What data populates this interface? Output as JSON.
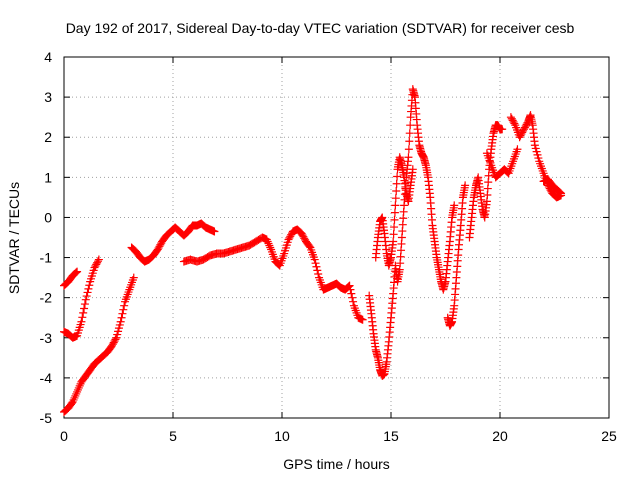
{
  "chart_data": {
    "type": "scatter",
    "title": "Day 192 of 2017, Sidereal Day-to-day VTEC variation (SDTVAR) for receiver cesb",
    "xlabel": "GPS time / hours",
    "ylabel": "SDTVAR / TECUs",
    "xlim": [
      0,
      25
    ],
    "ylim": [
      -5,
      4
    ],
    "xticks": [
      "0",
      "5",
      "10",
      "15",
      "20",
      "25"
    ],
    "yticks": [
      "-5",
      "-4",
      "-3",
      "-2",
      "-1",
      "0",
      "1",
      "2",
      "3",
      "4"
    ],
    "grid": true,
    "legend": "none",
    "marker": "+",
    "color": "#ff0000",
    "series": [
      {
        "segments": [
          [
            [
              0.0,
              -1.7
            ],
            [
              0.2,
              -1.6
            ],
            [
              0.4,
              -1.45
            ],
            [
              0.6,
              -1.35
            ]
          ],
          [
            [
              0.0,
              -2.85
            ],
            [
              0.2,
              -2.9
            ],
            [
              0.4,
              -3.0
            ],
            [
              0.6,
              -2.95
            ],
            [
              0.8,
              -2.6
            ],
            [
              1.0,
              -2.05
            ],
            [
              1.2,
              -1.6
            ],
            [
              1.4,
              -1.25
            ],
            [
              1.6,
              -1.05
            ]
          ],
          [
            [
              0.0,
              -4.85
            ],
            [
              0.2,
              -4.75
            ],
            [
              0.4,
              -4.6
            ],
            [
              0.6,
              -4.35
            ],
            [
              0.8,
              -4.1
            ],
            [
              1.0,
              -3.95
            ],
            [
              1.2,
              -3.8
            ],
            [
              1.4,
              -3.65
            ],
            [
              1.6,
              -3.55
            ],
            [
              1.8,
              -3.45
            ],
            [
              2.0,
              -3.35
            ],
            [
              2.2,
              -3.2
            ],
            [
              2.4,
              -3.0
            ],
            [
              2.6,
              -2.6
            ],
            [
              2.8,
              -2.1
            ],
            [
              3.0,
              -1.8
            ],
            [
              3.2,
              -1.5
            ]
          ],
          [
            [
              3.1,
              -0.75
            ],
            [
              3.3,
              -0.85
            ],
            [
              3.5,
              -1.0
            ],
            [
              3.7,
              -1.1
            ],
            [
              3.9,
              -1.05
            ],
            [
              4.1,
              -0.95
            ],
            [
              4.3,
              -0.8
            ],
            [
              4.5,
              -0.6
            ],
            [
              4.7,
              -0.45
            ],
            [
              4.9,
              -0.35
            ],
            [
              5.1,
              -0.25
            ],
            [
              5.3,
              -0.35
            ],
            [
              5.5,
              -0.45
            ],
            [
              5.7,
              -0.35
            ],
            [
              5.9,
              -0.2
            ],
            [
              6.1,
              -0.2
            ],
            [
              6.3,
              -0.15
            ],
            [
              6.5,
              -0.25
            ],
            [
              6.7,
              -0.3
            ],
            [
              6.9,
              -0.35
            ]
          ],
          [
            [
              5.5,
              -1.1
            ],
            [
              5.8,
              -1.05
            ],
            [
              6.1,
              -1.1
            ],
            [
              6.4,
              -1.05
            ],
            [
              6.7,
              -0.95
            ],
            [
              7.0,
              -0.9
            ],
            [
              7.3,
              -0.9
            ],
            [
              7.6,
              -0.85
            ],
            [
              7.9,
              -0.8
            ],
            [
              8.2,
              -0.75
            ],
            [
              8.5,
              -0.7
            ],
            [
              8.8,
              -0.6
            ],
            [
              9.1,
              -0.5
            ],
            [
              9.3,
              -0.55
            ],
            [
              9.5,
              -0.8
            ],
            [
              9.7,
              -1.1
            ],
            [
              9.9,
              -1.2
            ],
            [
              10.1,
              -0.9
            ],
            [
              10.3,
              -0.55
            ],
            [
              10.5,
              -0.35
            ],
            [
              10.7,
              -0.3
            ],
            [
              10.9,
              -0.4
            ],
            [
              11.1,
              -0.6
            ],
            [
              11.3,
              -0.75
            ],
            [
              11.5,
              -1.05
            ],
            [
              11.7,
              -1.5
            ],
            [
              11.9,
              -1.8
            ],
            [
              12.1,
              -1.75
            ],
            [
              12.3,
              -1.7
            ],
            [
              12.5,
              -1.65
            ],
            [
              12.7,
              -1.75
            ],
            [
              12.9,
              -1.8
            ],
            [
              13.1,
              -1.7
            ],
            [
              13.3,
              -2.2
            ],
            [
              13.5,
              -2.5
            ],
            [
              13.7,
              -2.55
            ]
          ],
          [
            [
              14.0,
              -1.95
            ],
            [
              14.1,
              -2.4
            ],
            [
              14.2,
              -2.9
            ],
            [
              14.3,
              -3.3
            ],
            [
              14.4,
              -3.5
            ],
            [
              14.5,
              -3.8
            ],
            [
              14.6,
              -3.95
            ],
            [
              14.7,
              -3.9
            ],
            [
              14.8,
              -3.6
            ],
            [
              14.9,
              -3.1
            ],
            [
              15.0,
              -2.5
            ],
            [
              15.1,
              -1.9
            ],
            [
              15.2,
              -1.2
            ],
            [
              15.3,
              -1.6
            ],
            [
              15.4,
              -1.3
            ],
            [
              15.5,
              -0.5
            ],
            [
              15.6,
              0.3
            ],
            [
              15.7,
              1.0
            ],
            [
              15.8,
              1.5
            ],
            [
              15.9,
              2.5
            ],
            [
              16.0,
              3.2
            ],
            [
              16.1,
              3.0
            ],
            [
              16.2,
              2.3
            ],
            [
              16.3,
              1.8
            ],
            [
              16.4,
              1.6
            ],
            [
              16.5,
              1.5
            ],
            [
              16.6,
              1.3
            ],
            [
              16.7,
              1.0
            ],
            [
              16.8,
              0.5
            ],
            [
              16.9,
              -0.2
            ],
            [
              17.0,
              -0.6
            ],
            [
              17.1,
              -1.0
            ],
            [
              17.2,
              -1.3
            ],
            [
              17.3,
              -1.6
            ],
            [
              17.4,
              -1.8
            ],
            [
              17.5,
              -1.6
            ],
            [
              17.6,
              -1.1
            ],
            [
              17.7,
              -0.6
            ],
            [
              17.8,
              0.0
            ],
            [
              17.9,
              0.3
            ]
          ],
          [
            [
              14.3,
              -1.0
            ],
            [
              14.4,
              -0.5
            ],
            [
              14.5,
              -0.1
            ],
            [
              14.6,
              0.0
            ],
            [
              14.7,
              -0.4
            ],
            [
              14.8,
              -0.9
            ],
            [
              14.9,
              -1.2
            ],
            [
              15.0,
              -1.0
            ],
            [
              15.1,
              -0.6
            ],
            [
              15.2,
              0.3
            ],
            [
              15.3,
              1.2
            ],
            [
              15.4,
              1.5
            ],
            [
              15.5,
              1.3
            ],
            [
              15.6,
              1.0
            ],
            [
              15.7,
              0.6
            ],
            [
              15.8,
              0.4
            ],
            [
              15.9,
              0.8
            ],
            [
              16.0,
              1.2
            ]
          ],
          [
            [
              17.6,
              -2.5
            ],
            [
              17.7,
              -2.7
            ],
            [
              17.8,
              -2.6
            ],
            [
              17.9,
              -2.2
            ],
            [
              18.0,
              -1.5
            ],
            [
              18.1,
              -0.8
            ],
            [
              18.2,
              -0.2
            ],
            [
              18.3,
              0.5
            ],
            [
              18.4,
              0.8
            ]
          ],
          [
            [
              18.6,
              -0.5
            ],
            [
              18.7,
              0.0
            ],
            [
              18.8,
              0.5
            ],
            [
              18.9,
              0.8
            ],
            [
              19.0,
              1.0
            ],
            [
              19.1,
              0.6
            ],
            [
              19.2,
              0.2
            ],
            [
              19.3,
              0.0
            ],
            [
              19.4,
              0.4
            ],
            [
              19.5,
              1.2
            ],
            [
              19.6,
              1.7
            ],
            [
              19.7,
              2.1
            ],
            [
              19.8,
              2.3
            ],
            [
              19.9,
              2.3
            ],
            [
              20.0,
              2.2
            ],
            [
              20.1,
              2.2
            ]
          ],
          [
            [
              19.4,
              1.6
            ],
            [
              19.6,
              1.3
            ],
            [
              19.8,
              1.0
            ],
            [
              20.0,
              1.1
            ],
            [
              20.2,
              1.2
            ],
            [
              20.4,
              1.1
            ],
            [
              20.6,
              1.4
            ],
            [
              20.8,
              1.7
            ]
          ],
          [
            [
              20.5,
              2.5
            ],
            [
              20.7,
              2.3
            ],
            [
              20.9,
              2.0
            ],
            [
              21.1,
              2.2
            ],
            [
              21.3,
              2.4
            ],
            [
              21.4,
              2.55
            ],
            [
              21.5,
              2.3
            ],
            [
              21.6,
              1.8
            ],
            [
              21.8,
              1.4
            ],
            [
              22.0,
              1.1
            ],
            [
              22.2,
              0.8
            ],
            [
              22.4,
              0.6
            ],
            [
              22.6,
              0.5
            ],
            [
              22.8,
              0.55
            ]
          ],
          [
            [
              22.0,
              0.9
            ],
            [
              22.2,
              0.95
            ],
            [
              22.4,
              0.8
            ],
            [
              22.6,
              0.7
            ],
            [
              22.8,
              0.6
            ]
          ]
        ]
      }
    ]
  }
}
